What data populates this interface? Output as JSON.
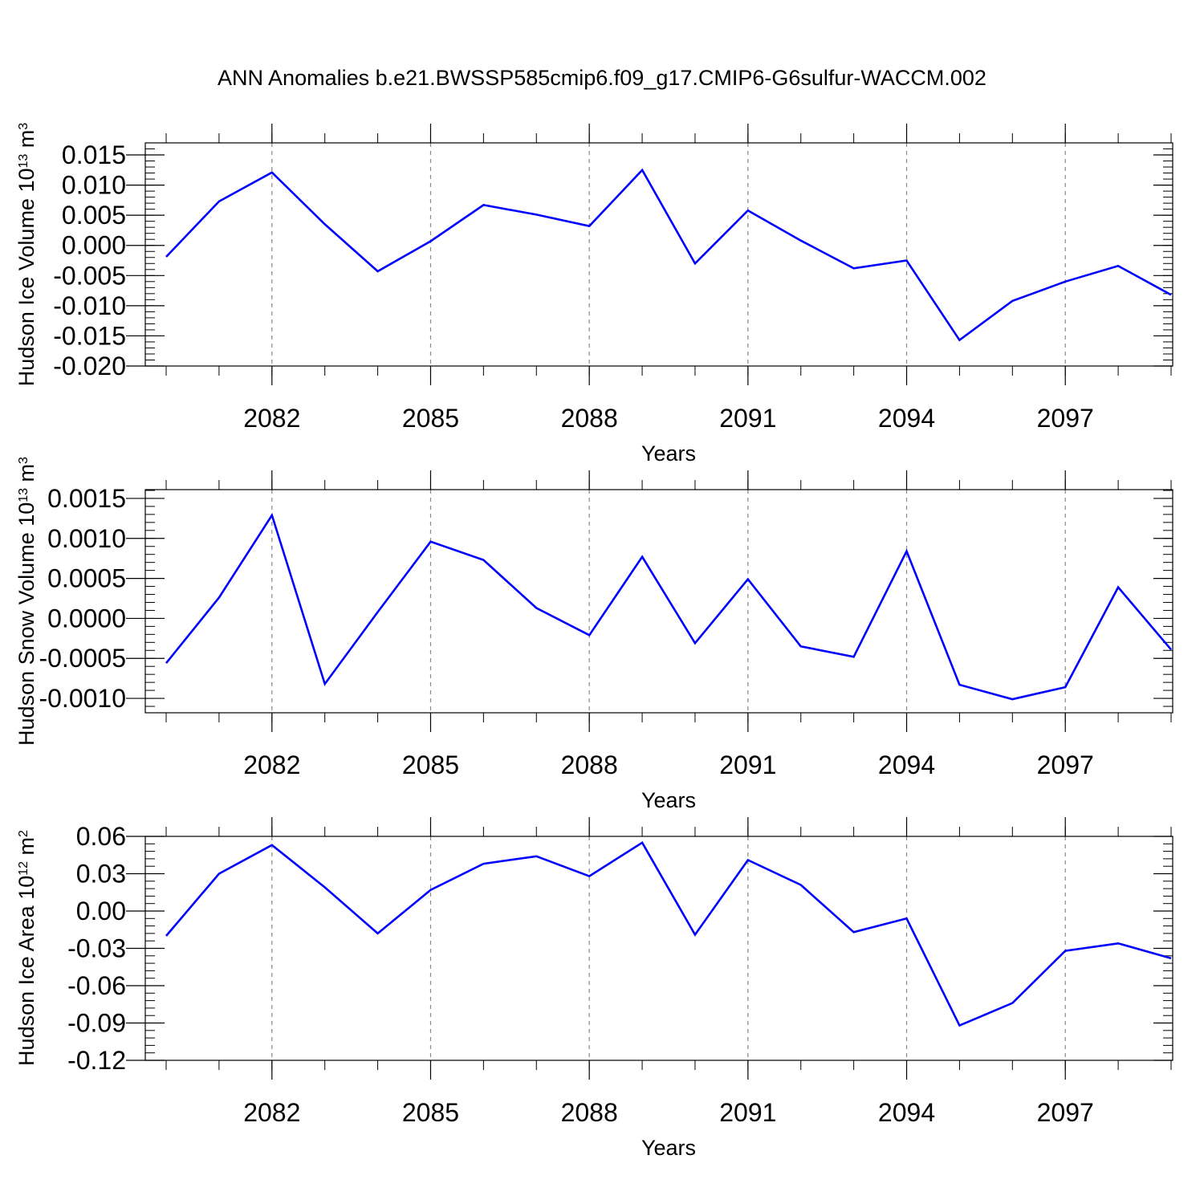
{
  "figure": {
    "title": "ANN Anomalies b.e21.BWSSP585cmip6.f09_g17.CMIP6-G6sulfur-WACCM.002"
  },
  "chart_data": [
    {
      "type": "line",
      "xlabel": "Years",
      "ylabel_main": "Hudson Ice Volume 10",
      "ylabel_exp": "13",
      "ylabel_unit": " m",
      "ylabel_unit_exp": "3",
      "xlim": [
        2080,
        2099
      ],
      "ylim": [
        -0.02,
        0.017
      ],
      "x_ticks": [
        2082,
        2085,
        2088,
        2091,
        2094,
        2097
      ],
      "x_tick_labels": [
        "2082",
        "2085",
        "2088",
        "2091",
        "2094",
        "2097"
      ],
      "y_ticks": [
        0.015,
        0.01,
        0.005,
        0.0,
        -0.005,
        -0.01,
        -0.015,
        -0.02
      ],
      "y_tick_labels": [
        "0.015",
        "0.010",
        "0.005",
        "0.000",
        "-0.005",
        "-0.010",
        "-0.015",
        "-0.020"
      ],
      "y_minor_step": 0.001,
      "grid": "vertical dashed at major x ticks",
      "line_color": "#0000ff",
      "x": [
        2080,
        2081,
        2082,
        2083,
        2084,
        2085,
        2086,
        2087,
        2088,
        2089,
        2090,
        2091,
        2092,
        2093,
        2094,
        2095,
        2096,
        2097,
        2098,
        2099
      ],
      "values": [
        -0.0019,
        0.0073,
        0.0121,
        0.0035,
        -0.0043,
        0.0007,
        0.0067,
        0.0051,
        0.0032,
        0.0125,
        -0.003,
        0.0058,
        0.0008,
        -0.0038,
        -0.0025,
        -0.0157,
        -0.0092,
        -0.006,
        -0.0034,
        -0.0082
      ]
    },
    {
      "type": "line",
      "xlabel": "Years",
      "ylabel_main": "Hudson Snow Volume 10",
      "ylabel_exp": "13",
      "ylabel_unit": " m",
      "ylabel_unit_exp": "3",
      "xlim": [
        2080,
        2099
      ],
      "ylim": [
        -0.00118,
        0.00161
      ],
      "x_ticks": [
        2082,
        2085,
        2088,
        2091,
        2094,
        2097
      ],
      "x_tick_labels": [
        "2082",
        "2085",
        "2088",
        "2091",
        "2094",
        "2097"
      ],
      "y_ticks": [
        0.0015,
        0.001,
        0.0005,
        0.0,
        -0.0005,
        -0.001
      ],
      "y_tick_labels": [
        "0.0015",
        "0.0010",
        "0.0005",
        "0.0000",
        "-0.0005",
        "-0.0010"
      ],
      "y_minor_step": 0.0001,
      "grid": "vertical dashed at major x ticks",
      "line_color": "#0000ff",
      "x": [
        2080,
        2081,
        2082,
        2083,
        2084,
        2085,
        2086,
        2087,
        2088,
        2089,
        2090,
        2091,
        2092,
        2093,
        2094,
        2095,
        2096,
        2097,
        2098,
        2099
      ],
      "values": [
        -0.00056,
        0.00026,
        0.00129,
        -0.00082,
        8e-05,
        0.00096,
        0.00073,
        0.00013,
        -0.00021,
        0.00077,
        -0.00031,
        0.00049,
        -0.00035,
        -0.00048,
        0.00084,
        -0.00083,
        -0.00101,
        -0.00086,
        0.00039,
        -0.00039
      ]
    },
    {
      "type": "line",
      "xlabel": "Years",
      "ylabel_main": "Hudson Ice Area 10",
      "ylabel_exp": "12",
      "ylabel_unit": " m",
      "ylabel_unit_exp": "2",
      "xlim": [
        2080,
        2099
      ],
      "ylim": [
        -0.12,
        0.06
      ],
      "x_ticks": [
        2082,
        2085,
        2088,
        2091,
        2094,
        2097
      ],
      "x_tick_labels": [
        "2082",
        "2085",
        "2088",
        "2091",
        "2094",
        "2097"
      ],
      "y_ticks": [
        0.06,
        0.03,
        0.0,
        -0.03,
        -0.06,
        -0.09,
        -0.12
      ],
      "y_tick_labels": [
        "0.06",
        "0.03",
        "0.00",
        "-0.03",
        "-0.06",
        "-0.09",
        "-0.12"
      ],
      "y_minor_step": 0.006,
      "grid": "vertical dashed at major x ticks",
      "line_color": "#0000ff",
      "x": [
        2080,
        2081,
        2082,
        2083,
        2084,
        2085,
        2086,
        2087,
        2088,
        2089,
        2090,
        2091,
        2092,
        2093,
        2094,
        2095,
        2096,
        2097,
        2098,
        2099
      ],
      "values": [
        -0.02,
        0.03,
        0.053,
        0.019,
        -0.018,
        0.017,
        0.038,
        0.044,
        0.028,
        0.055,
        -0.019,
        0.041,
        0.021,
        -0.017,
        -0.006,
        -0.092,
        -0.074,
        -0.032,
        -0.026,
        -0.038
      ]
    }
  ]
}
